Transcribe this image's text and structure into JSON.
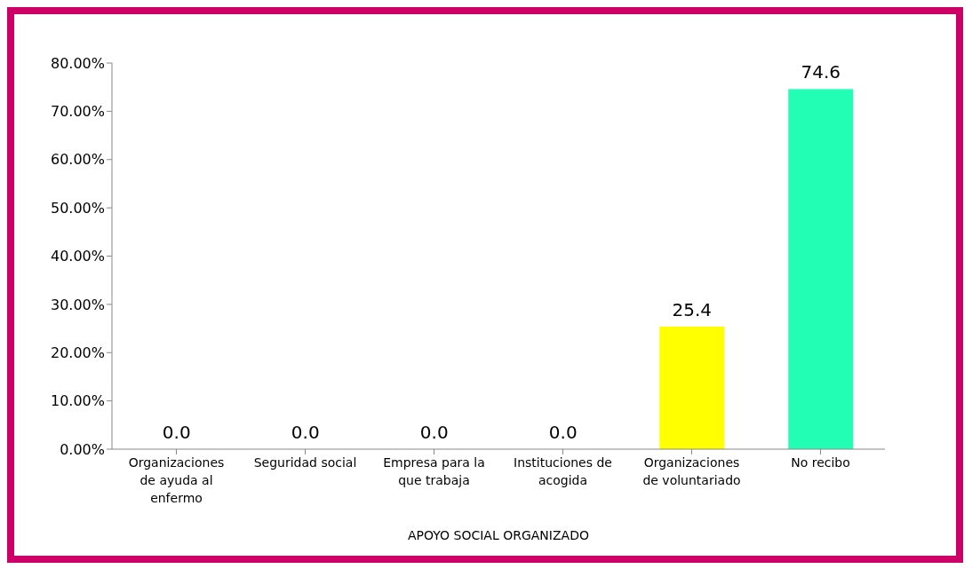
{
  "chart_data": {
    "type": "bar",
    "xlabel": "APOYO SOCIAL ORGANIZADO",
    "categories": [
      "Organizaciones de ayuda al enfermo",
      "Seguridad social",
      "Empresa para la que trabaja",
      "Instituciones de acogida",
      "Organizaciones de voluntariado",
      "No recibo"
    ],
    "values": [
      0,
      0,
      0,
      0,
      25.4,
      74.6
    ],
    "colors": [
      "#c8246f",
      "#4fc94f",
      "#3d5a27",
      "#0088c2",
      "#ffff00",
      "#22ffb4"
    ],
    "value_labels": [
      "0.0",
      "0.0",
      "0.0",
      "0.0",
      "25.4",
      "74.6"
    ],
    "ylim": [
      0,
      80
    ],
    "yticks": [
      {
        "value": 0,
        "label": "0.00%"
      },
      {
        "value": 10,
        "label": "10.00%"
      },
      {
        "value": 20,
        "label": "20.00%"
      },
      {
        "value": 30,
        "label": "30.00%"
      },
      {
        "value": 40,
        "label": "40.00%"
      },
      {
        "value": 50,
        "label": "50.00%"
      },
      {
        "value": 60,
        "label": "60.00%"
      },
      {
        "value": 70,
        "label": "70.00%"
      },
      {
        "value": 80,
        "label": "80.00%"
      }
    ],
    "grid": false,
    "legend": false
  }
}
